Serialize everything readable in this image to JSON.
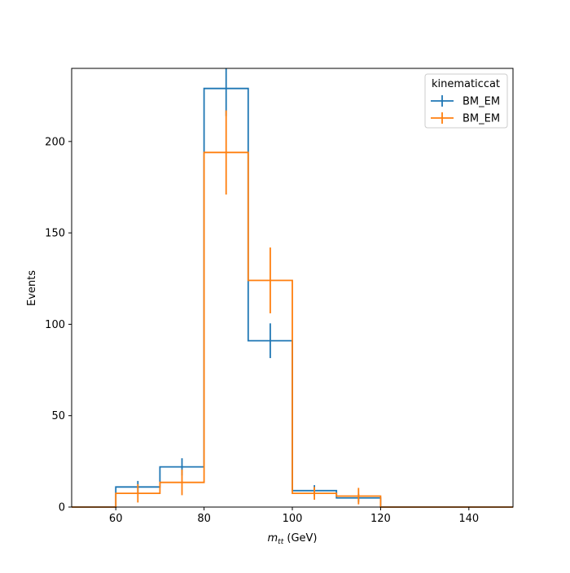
{
  "chart_data": {
    "type": "step-histogram",
    "xlabel_main": "m",
    "xlabel_sub": "tt",
    "xlabel_unit": " (GeV)",
    "ylabel": "Events",
    "xlim": [
      50,
      150
    ],
    "ylim": [
      0,
      240
    ],
    "xticks": [
      60,
      80,
      100,
      120,
      140
    ],
    "yticks": [
      0,
      50,
      100,
      150,
      200
    ],
    "bin_edges": [
      50,
      60,
      70,
      80,
      90,
      100,
      110,
      120,
      130,
      140,
      150
    ],
    "grid": false,
    "legend": {
      "title": "kinematiccat",
      "placement": "top-right"
    },
    "series": [
      {
        "name": "BM_EM",
        "color": "#1f77b4",
        "values": [
          0,
          11,
          22,
          229,
          91,
          9,
          5,
          0,
          0,
          0
        ],
        "errors": [
          0,
          3.3,
          4.7,
          15.1,
          9.5,
          3.0,
          2.2,
          0,
          0,
          0
        ]
      },
      {
        "name": "BM_EM",
        "color": "#ff7f0e",
        "values": [
          0,
          7.5,
          13.5,
          194,
          124,
          7.5,
          6,
          0,
          0,
          0
        ],
        "errors": [
          0,
          5,
          7,
          23,
          18,
          3.5,
          4.5,
          0,
          0,
          0
        ]
      }
    ]
  }
}
